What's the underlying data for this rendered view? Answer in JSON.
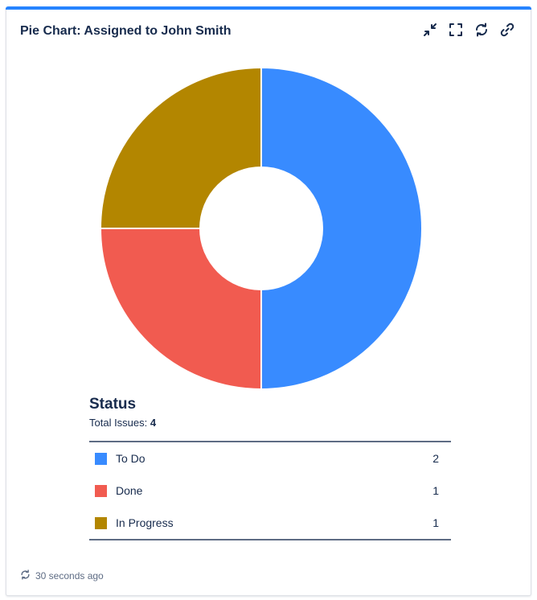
{
  "gadget": {
    "title": "Pie Chart: Assigned to John Smith",
    "accent_color": "#2684ff",
    "toolbar": [
      {
        "icon": "minimize-icon"
      },
      {
        "icon": "fullscreen-icon"
      },
      {
        "icon": "refresh-icon"
      },
      {
        "icon": "link-icon"
      }
    ],
    "footer": {
      "icon": "refresh-icon",
      "updated_text": "30 seconds ago"
    }
  },
  "legend": {
    "title": "Status",
    "total_label": "Total Issues:",
    "total_value": "4",
    "items": [
      {
        "label": "To Do",
        "count": "2",
        "color": "#388bff"
      },
      {
        "label": "Done",
        "count": "1",
        "color": "#f15b50"
      },
      {
        "label": "In Progress",
        "count": "1",
        "color": "#b38600"
      }
    ]
  },
  "chart_data": {
    "type": "pie",
    "variant": "donut",
    "title": "Status",
    "categories": [
      "To Do",
      "Done",
      "In Progress"
    ],
    "values": [
      2,
      1,
      1
    ],
    "colors": [
      "#388bff",
      "#f15b50",
      "#b38600"
    ],
    "total": 4
  }
}
